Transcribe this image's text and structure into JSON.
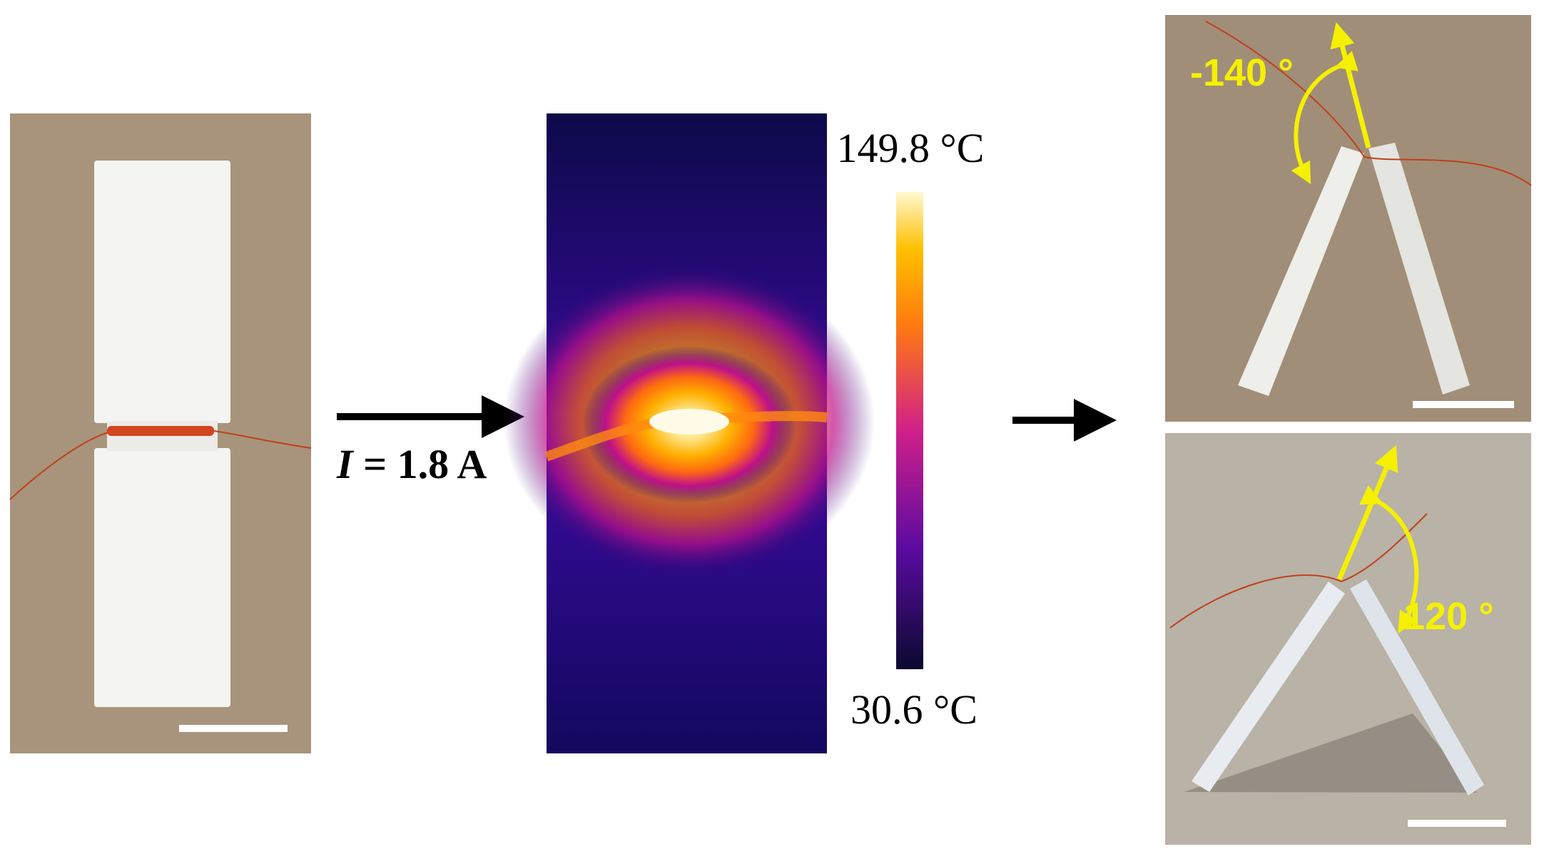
{
  "figure": {
    "current": {
      "symbol": "I",
      "value": "= 1.8 A"
    },
    "thermal": {
      "max_label": "149.8 °C",
      "min_label": "30.6 °C"
    },
    "bent": [
      {
        "angle_label": "-140 °"
      },
      {
        "angle_label": "120 °"
      }
    ]
  }
}
